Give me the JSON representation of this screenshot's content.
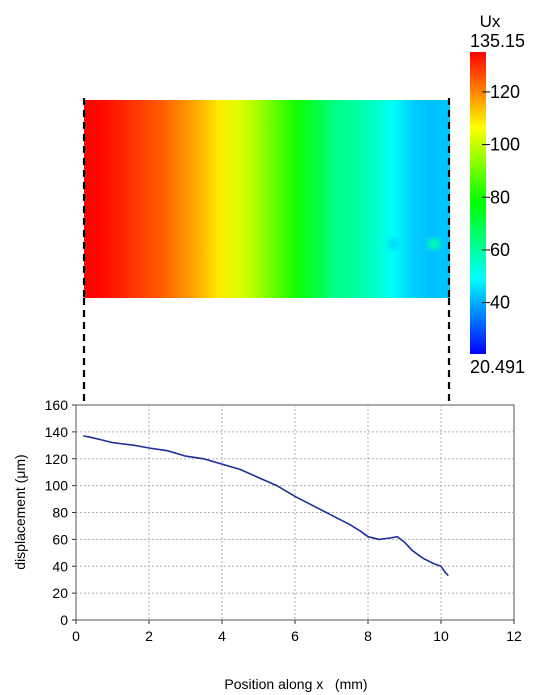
{
  "colorbar": {
    "title": "Ux",
    "max_label": "135.15",
    "min_label": "20.491",
    "min": 20.491,
    "max": 135.15,
    "ticks": [
      {
        "value": 120,
        "label": "120"
      },
      {
        "value": 100,
        "label": "100"
      },
      {
        "value": 80,
        "label": "80"
      },
      {
        "value": 60,
        "label": "60"
      },
      {
        "value": 40,
        "label": "40"
      }
    ],
    "colors": [
      "#0000ff",
      "#00ffff",
      "#00ff00",
      "#ffff00",
      "#ff0000"
    ]
  },
  "heatmap": {
    "columns": [
      136,
      134,
      131,
      128,
      125,
      120,
      115,
      109,
      103,
      96,
      88,
      80,
      71,
      63,
      60,
      56,
      50,
      44,
      42,
      43
    ],
    "spots": [
      {
        "x": 8.7,
        "value": 45
      },
      {
        "x": 9.8,
        "value": 58
      }
    ]
  },
  "chart_data": {
    "type": "line",
    "title": "",
    "xlabel": "Position along x   (mm)",
    "ylabel": "displacement (μm)",
    "xlim": [
      0,
      12
    ],
    "ylim": [
      0,
      160
    ],
    "xticks": [
      0,
      2,
      4,
      6,
      8,
      10,
      12
    ],
    "yticks": [
      0,
      20,
      40,
      60,
      80,
      100,
      120,
      140,
      160
    ],
    "grid": true,
    "line_color": "#1f2f9a",
    "series": [
      {
        "x": [
          0.2,
          0.4,
          0.7,
          1.0,
          1.3,
          1.6,
          2.0,
          2.5,
          3.0,
          3.5,
          4.0,
          4.5,
          5.0,
          5.5,
          6.0,
          6.5,
          7.0,
          7.5,
          7.8,
          8.0,
          8.3,
          8.6,
          8.8,
          9.0,
          9.2,
          9.5,
          9.8,
          10.0,
          10.1,
          10.2
        ],
        "y": [
          137,
          136,
          134,
          132,
          131,
          130,
          128,
          126,
          122,
          120,
          116,
          112,
          106,
          100,
          92,
          85,
          78,
          71,
          66,
          62,
          60,
          61,
          62,
          58,
          52,
          46,
          42,
          40,
          36,
          33
        ]
      }
    ]
  }
}
